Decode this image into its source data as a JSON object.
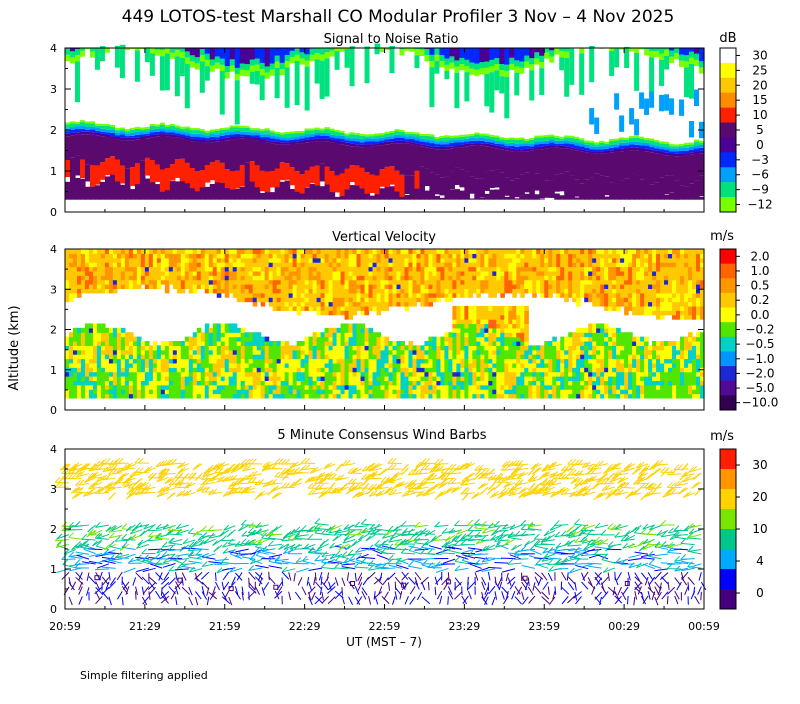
{
  "title": "449 LOTOS-test Marshall CO Modular Profiler  3 Nov –  4 Nov 2025",
  "y_axis_label": "Altitude (km)",
  "x_axis_label": "UT  (MST – 7)",
  "footnote": "Simple filtering applied",
  "chart_data": [
    {
      "type": "heatmap",
      "title": "Signal to Noise Ratio",
      "colorbar_unit": "dB",
      "colorbar_ticks": [
        "30",
        "25",
        "20",
        "15",
        "10",
        "5",
        "0",
        "−3",
        "−6",
        "−9",
        "−12"
      ],
      "colorbar_colors": [
        "#ffffff",
        "#ffff00",
        "#ffc800",
        "#ff8c00",
        "#ff2000",
        "#5a0a6e",
        "#4b0096",
        "#0028ff",
        "#00a0ff",
        "#00e27e",
        "#78ff00"
      ],
      "x_ticks": [
        "20:59",
        "21:29",
        "21:59",
        "22:29",
        "22:59",
        "23:29",
        "23:59",
        "00:29",
        "00:59"
      ],
      "ylim": [
        0,
        4
      ],
      "y_ticks": [
        "0",
        "1",
        "2",
        "3",
        "4"
      ],
      "layers_approx_km": [
        {
          "range": [
            0.3,
            0.6
          ],
          "value_dB": 5
        },
        {
          "range": [
            0.6,
            1.2
          ],
          "value_dB": 10
        },
        {
          "range": [
            1.2,
            1.6
          ],
          "value_dB": 5
        },
        {
          "range": [
            1.6,
            1.8
          ],
          "value_dB": 0
        },
        {
          "range": [
            1.8,
            2.0
          ],
          "value_dB": -6
        },
        {
          "range": [
            2.0,
            3.7
          ],
          "value_dB": 30
        },
        {
          "range": [
            3.7,
            4.0
          ],
          "value_dB": -3
        }
      ]
    },
    {
      "type": "heatmap",
      "title": "Vertical Velocity",
      "colorbar_unit": "m/s",
      "colorbar_ticks": [
        "2.0",
        "1.0",
        "0.5",
        "0.2",
        "0.0",
        "−0.2",
        "−0.5",
        "−1.0",
        "−2.0",
        "−5.0",
        "−10.0"
      ],
      "colorbar_colors": [
        "#ff0000",
        "#ff6400",
        "#ff9600",
        "#ffc800",
        "#ffff00",
        "#50e600",
        "#00d2c8",
        "#0096ff",
        "#1e28d2",
        "#500a96",
        "#320050"
      ],
      "x_ticks": [
        "20:59",
        "21:29",
        "21:59",
        "22:29",
        "22:59",
        "23:29",
        "23:59",
        "00:29",
        "00:59"
      ],
      "ylim": [
        0,
        4
      ],
      "y_ticks": [
        "0",
        "1",
        "2",
        "3",
        "4"
      ]
    },
    {
      "type": "scatter",
      "title": "5 Minute Consensus Wind Barbs",
      "colorbar_unit": "m/s",
      "colorbar_ticks": [
        "30",
        "20",
        "10",
        "4",
        "0"
      ],
      "colorbar_colors": [
        "#ff1e00",
        "#ff9600",
        "#ffd200",
        "#78e600",
        "#00c88c",
        "#00aaff",
        "#0000ff",
        "#46007d"
      ],
      "x_ticks": [
        "20:59",
        "21:29",
        "21:59",
        "22:29",
        "22:59",
        "23:29",
        "23:59",
        "00:29",
        "00:59"
      ],
      "ylim": [
        0,
        4
      ],
      "y_ticks": [
        "0",
        "1",
        "2",
        "3",
        "4"
      ],
      "wind_layers_approx": [
        {
          "alt_range_km": [
            0.3,
            1.0
          ],
          "speed_ms": 2,
          "dir_deg": 180
        },
        {
          "alt_range_km": [
            1.0,
            1.6
          ],
          "speed_ms": 5,
          "dir_deg": 270
        },
        {
          "alt_range_km": [
            1.6,
            2.2
          ],
          "speed_ms": 8,
          "dir_deg": 250
        },
        {
          "alt_range_km": [
            2.9,
            3.8
          ],
          "speed_ms": 15,
          "dir_deg": 240
        }
      ]
    }
  ]
}
